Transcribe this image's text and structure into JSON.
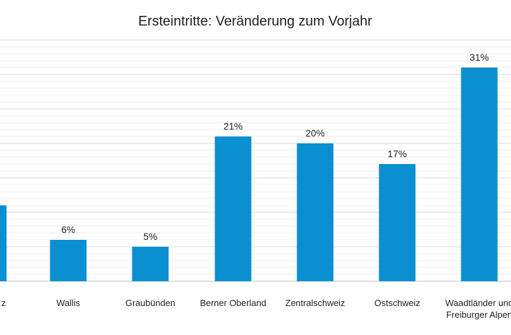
{
  "chart_data": {
    "type": "bar",
    "title": "Ersteintritte: Veränderung zum Vorjahr",
    "categories": [
      "…z",
      "Wallis",
      "Graubünden",
      "Berner Oberland",
      "Zentralschweiz",
      "Ostschweiz",
      "Waadtländer und Freiburger Alpen"
    ],
    "category_display": [
      [
        "z"
      ],
      [
        "Wallis"
      ],
      [
        "Graubünden"
      ],
      [
        "Berner Oberland"
      ],
      [
        "Zentralschweiz"
      ],
      [
        "Ostschweiz"
      ],
      [
        "Waadtländer und",
        "Freiburger Alpen"
      ]
    ],
    "values": [
      11,
      6,
      5,
      21,
      20,
      17,
      31
    ],
    "value_labels": [
      "",
      "6%",
      "5%",
      "21%",
      "20%",
      "17%",
      "31%"
    ],
    "xlabel": "",
    "ylabel": "",
    "ylim": [
      0,
      35
    ],
    "bar_color": "#0a8fd1",
    "grid": true
  }
}
